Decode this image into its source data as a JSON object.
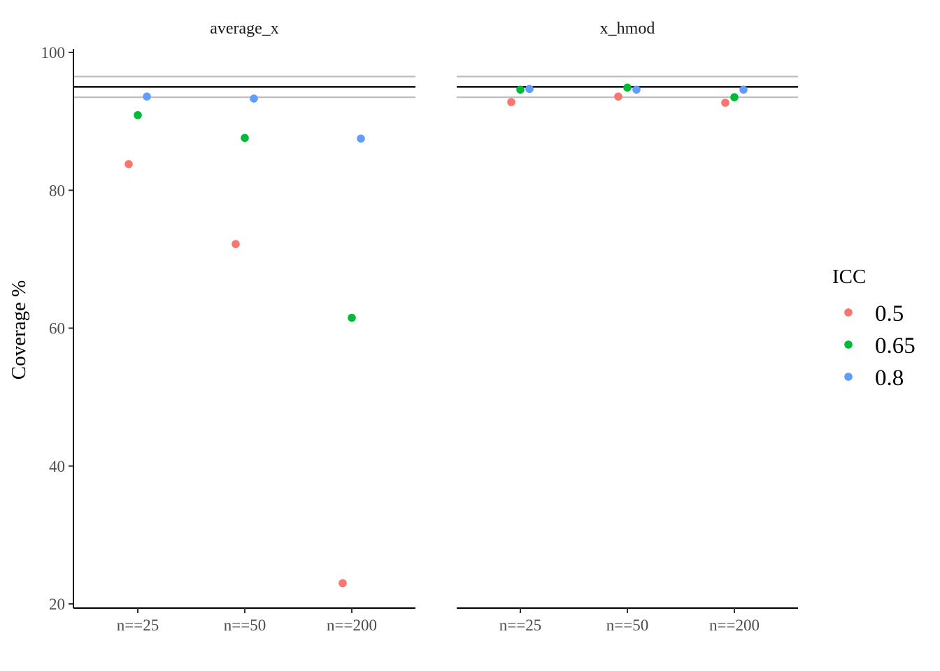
{
  "chart_data": {
    "type": "scatter",
    "ylabel": "Coverage %",
    "ylim": [
      20,
      100
    ],
    "yticks": [
      20,
      40,
      60,
      80,
      100
    ],
    "categories": [
      "n==25",
      "n==50",
      "n==200"
    ],
    "reference_lines": {
      "target": 95,
      "band": [
        93.5,
        96.5
      ]
    },
    "legend": {
      "title": "ICC",
      "position": "right"
    },
    "series": [
      {
        "name": "0.5",
        "color": "#F8766D"
      },
      {
        "name": "0.65",
        "color": "#00BA38"
      },
      {
        "name": "0.8",
        "color": "#619CFF"
      }
    ],
    "panels": [
      {
        "title": "average_x",
        "values": {
          "0.5": [
            83.8,
            72.2,
            23.0
          ],
          "0.65": [
            90.9,
            87.6,
            61.5
          ],
          "0.8": [
            93.6,
            93.3,
            87.5
          ]
        }
      },
      {
        "title": "x_hmod",
        "values": {
          "0.5": [
            92.8,
            93.6,
            92.7
          ],
          "0.65": [
            94.6,
            94.9,
            93.5
          ],
          "0.8": [
            94.7,
            94.6,
            94.6
          ]
        }
      }
    ]
  }
}
